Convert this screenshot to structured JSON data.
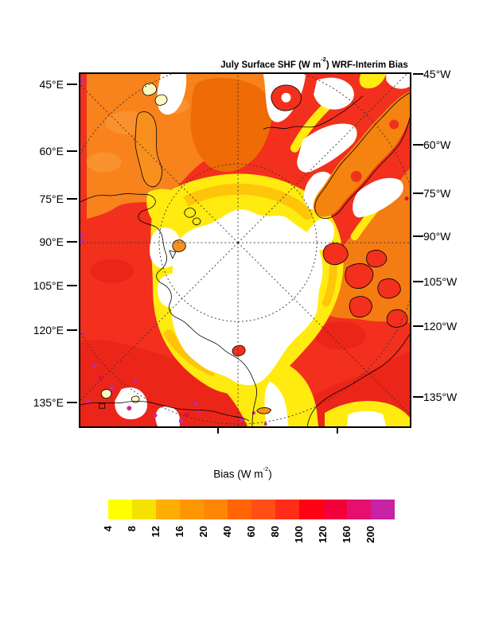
{
  "figure": {
    "title_prefix": "July Surface SHF (W m",
    "title_sup": "-2",
    "title_suffix": ") WRF-Interim Bias"
  },
  "map": {
    "left_labels": [
      "45°E",
      "60°E",
      "75°E",
      "90°E",
      "105°E",
      "120°E",
      "135°E"
    ],
    "right_labels": [
      "45°W",
      "60°W",
      "75°W",
      "90°W",
      "105°W",
      "120°W",
      "135°W"
    ]
  },
  "colorbar": {
    "title_prefix": "Bias (W m",
    "title_sup": "-2",
    "title_suffix": ")",
    "tick_labels": [
      "4",
      "8",
      "12",
      "16",
      "20",
      "40",
      "60",
      "80",
      "100",
      "120",
      "160",
      "200"
    ],
    "colors": [
      "#FFFF00",
      "#F6E200",
      "#FFAE05",
      "#FF9705",
      "#FF8705",
      "#FF6405",
      "#FF4F17",
      "#FF2D17",
      "#FF0213",
      "#F2003C",
      "#E50F6E",
      "#C622A4"
    ]
  },
  "palette": {
    "below_scale_white": "#FFFFFF",
    "yellow": "#FFEB0F",
    "amber": "#FFC50A",
    "orange": "#F8821C",
    "deep_orange": "#EF6B06",
    "orange_red": "#FA4E16",
    "red": "#F2301D",
    "deep_red": "#E82117",
    "magenta_speckle": "#C32BA2",
    "graticule": "#333333",
    "coastline": "#000000"
  },
  "chart_data": {
    "type": "heatmap",
    "title": "July Surface SHF (W m-2) WRF-Interim Bias",
    "colorbar_title": "Bias (W m-2)",
    "units": "W m-2",
    "projection": "Arctic polar stereographic (pole near map center)",
    "contour_levels": [
      4,
      8,
      12,
      16,
      20,
      40,
      60,
      80,
      100,
      120,
      160,
      200
    ],
    "level_colors": [
      "#FFFF00",
      "#F6E200",
      "#FFAE05",
      "#FF9705",
      "#FF8705",
      "#FF6405",
      "#FF4F17",
      "#FF2D17",
      "#FF0213",
      "#F2003C",
      "#E50F6E",
      "#C622A4"
    ],
    "values_below_first_level_shown_as": "white (< 4)",
    "values_above_last_level_shown_as": "magenta (> 200)",
    "left_axis_tick_labels": [
      "45°E",
      "60°E",
      "75°E",
      "90°E",
      "105°E",
      "120°E",
      "135°E"
    ],
    "right_axis_tick_labels": [
      "45°W",
      "60°W",
      "75°W",
      "90°W",
      "105°W",
      "120°W",
      "135°W"
    ],
    "graticule": {
      "style": "dashed",
      "meridian_tick_spacing_deg": 15,
      "radial_meridian_lines": 8,
      "latitude_circles_visible": 2
    },
    "legend_position": "bottom horizontal label bar",
    "regions": [
      {
        "region": "central polar cap (map center)",
        "bias": "< 4 (white)"
      },
      {
        "region": "ring around polar cap / ice margin",
        "bias": "4-20 (yellow to amber)"
      },
      {
        "region": "lower-left landmass (Siberian side, E longitudes)",
        "bias": "60-160 (red) with scattered >200 magenta speckles"
      },
      {
        "region": "lower-right landmass (North America)",
        "bias": "60-160 (red) with yellow band along bottom edge"
      },
      {
        "region": "upper-right diagonal ridge (Greenland) and archipelago",
        "bias": "mixed 4-120: white/yellow channels, orange ridge, red islands"
      },
      {
        "region": "upper-left open ocean sector",
        "bias": "20-60 (orange)"
      }
    ]
  }
}
